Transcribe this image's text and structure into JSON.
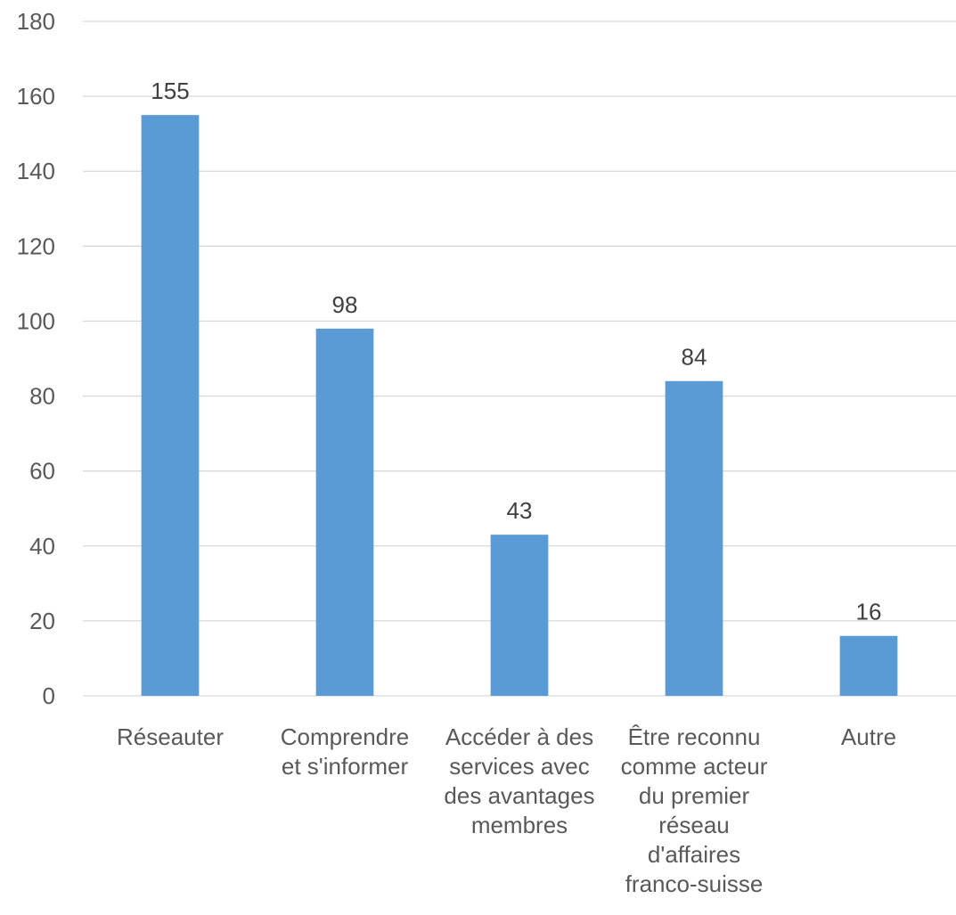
{
  "chart_data": {
    "type": "bar",
    "title": "",
    "xlabel": "",
    "ylabel": "",
    "categories": [
      [
        "Réseauter"
      ],
      [
        "Comprendre",
        "et s'informer"
      ],
      [
        "Accéder à des",
        "services avec",
        "des avantages",
        "membres"
      ],
      [
        "Être reconnu",
        "comme acteur",
        "du premier",
        "réseau",
        "d'affaires",
        "franco-suisse"
      ],
      [
        "Autre"
      ]
    ],
    "values": [
      155,
      98,
      43,
      84,
      16
    ],
    "data_labels": [
      "155",
      "98",
      "43",
      "84",
      "16"
    ],
    "ylim": [
      0,
      180
    ],
    "yticks": [
      "0",
      "20",
      "40",
      "60",
      "80",
      "100",
      "120",
      "140",
      "160",
      "180"
    ],
    "grid": true,
    "legend": "none",
    "bar_color": "#5b9bd5"
  }
}
